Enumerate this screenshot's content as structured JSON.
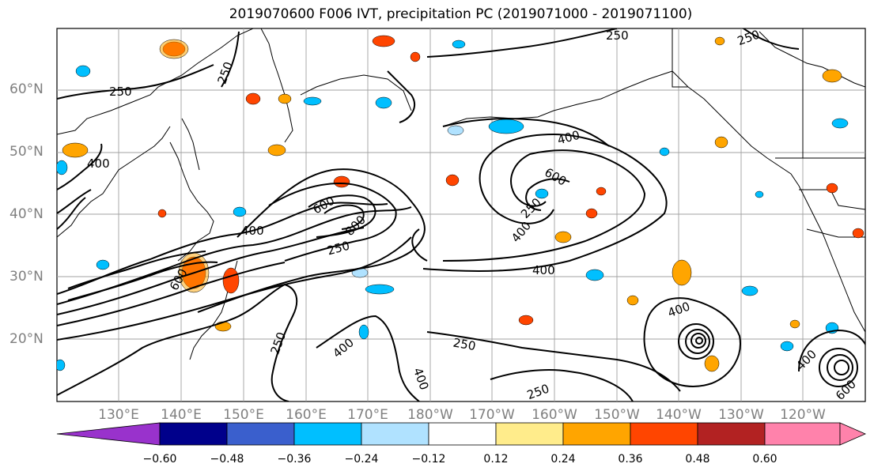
{
  "title": "2019070600 F006 IVT, precipitation PC (2019071000 - 2019071100)",
  "lat_labels": [
    "60°N",
    "50°N",
    "40°N",
    "30°N",
    "20°N"
  ],
  "lon_labels": [
    "130°E",
    "140°E",
    "150°E",
    "160°E",
    "170°E",
    "180°W",
    "170°W",
    "160°W",
    "150°W",
    "140°W",
    "130°W",
    "120°W"
  ],
  "contour_labels": [
    "250",
    "250",
    "250",
    "250",
    "400",
    "400",
    "400",
    "400",
    "600",
    "600",
    "800",
    "250",
    "400",
    "250",
    "250",
    "400",
    "400",
    "250",
    "600",
    "400",
    "250",
    "400",
    "600"
  ],
  "colorbar": {
    "colors": [
      "#9932cc",
      "#00008b",
      "#3a5fcd",
      "#00bfff",
      "#b0e2ff",
      "#ffffff",
      "#ffec8b",
      "#ffa500",
      "#ff4500",
      "#b22222",
      "#ff82ab"
    ],
    "tick_labels": [
      "−0.60",
      "−0.48",
      "−0.36",
      "−0.24",
      "−0.12",
      "0.12",
      "0.24",
      "0.36",
      "0.48",
      "0.60"
    ]
  }
}
